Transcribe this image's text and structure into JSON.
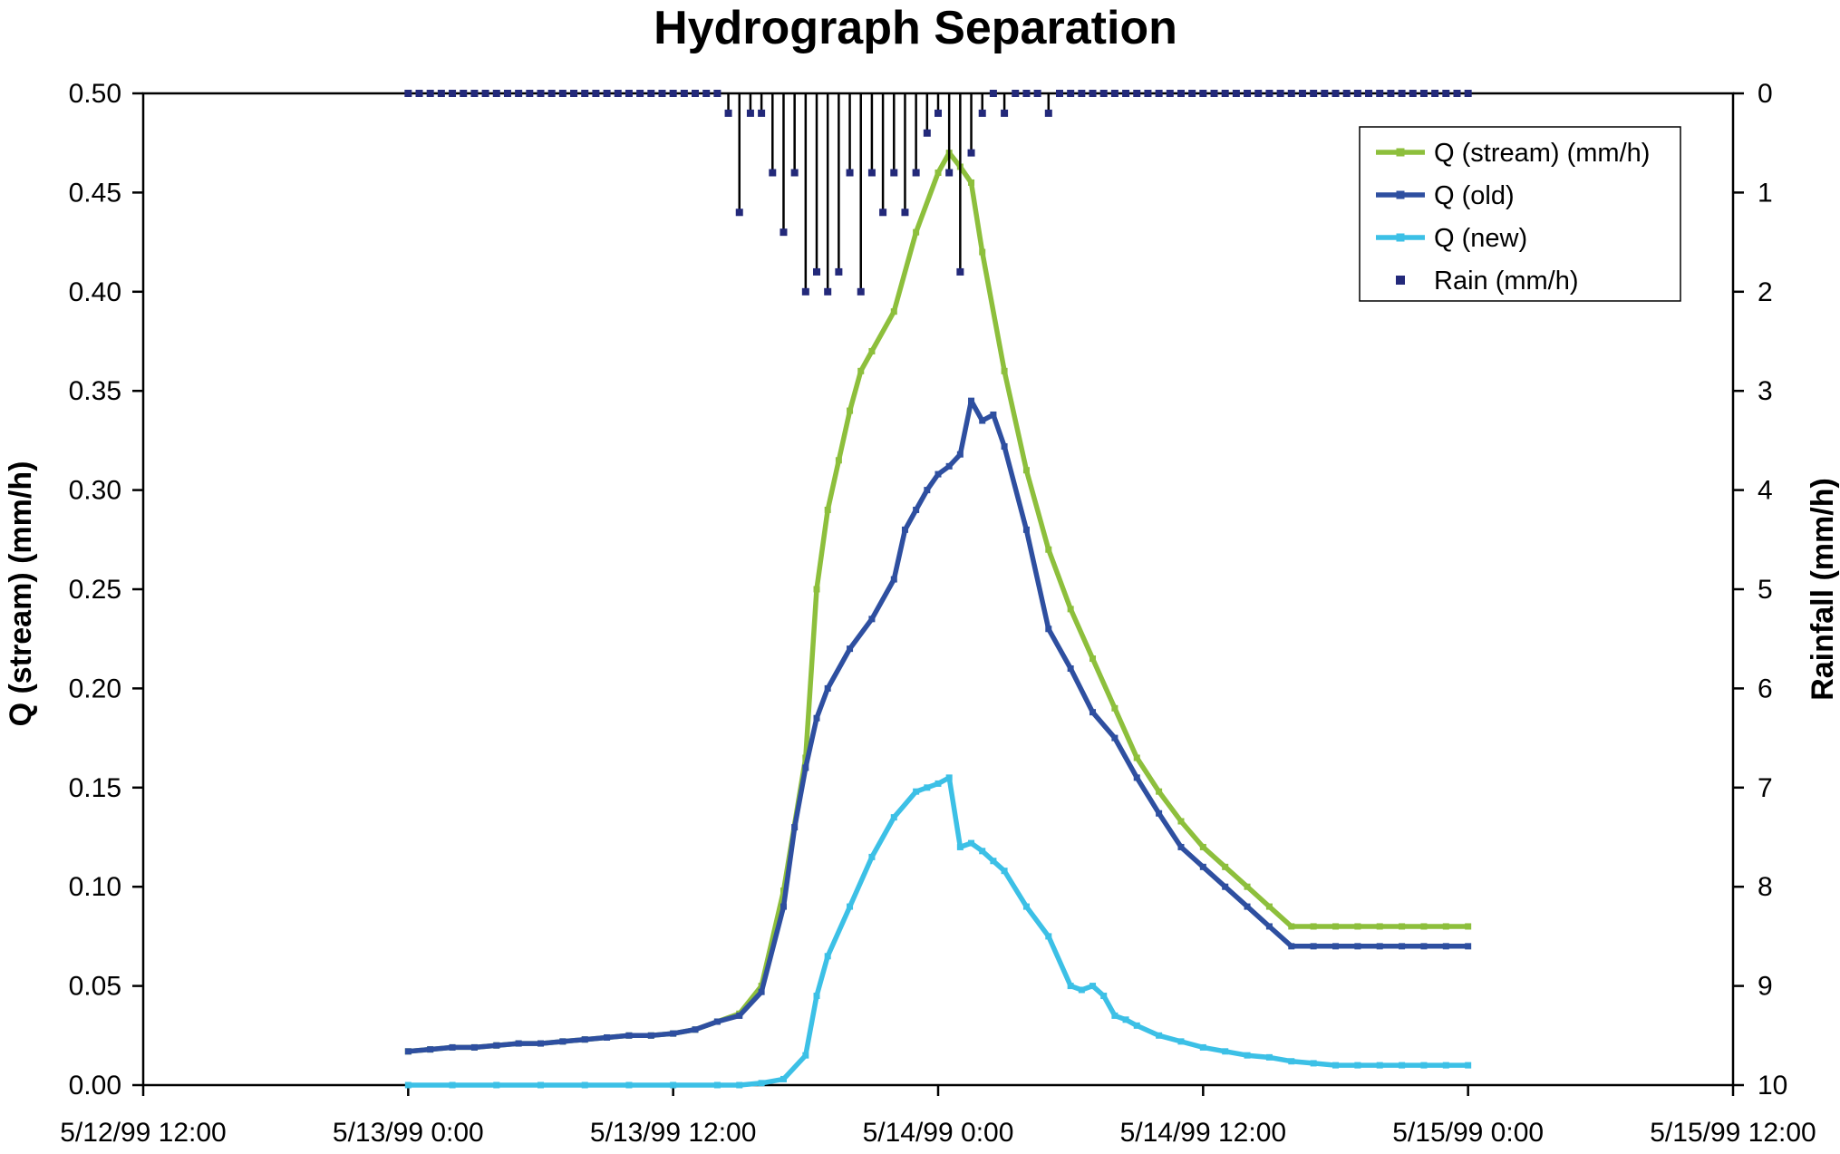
{
  "chart_data": {
    "type": "line",
    "title": "Hydrograph Separation",
    "xlabel": "",
    "ylabel": "Q (stream) (mm/h)",
    "y2label": "Rainfall (mm/h)",
    "x_tick_labels": [
      "5/12/99 12:00",
      "5/13/99 0:00",
      "5/13/99 12:00",
      "5/14/99 0:00",
      "5/14/99 12:00",
      "5/15/99 0:00",
      "5/15/99 12:00"
    ],
    "x_ticks_hours": [
      0,
      12,
      24,
      36,
      48,
      60,
      72
    ],
    "xlim": [
      0,
      72
    ],
    "y_tick_labels": [
      "0.00",
      "0.05",
      "0.10",
      "0.15",
      "0.20",
      "0.25",
      "0.30",
      "0.35",
      "0.40",
      "0.45",
      "0.50"
    ],
    "ylim": [
      0,
      0.5
    ],
    "y2_tick_labels": [
      "0",
      "1",
      "2",
      "3",
      "4",
      "5",
      "6",
      "7",
      "8",
      "9",
      "10"
    ],
    "y2lim": [
      0,
      10
    ],
    "y2_inverted": true,
    "grid": false,
    "legend": {
      "position": "top-right",
      "entries": [
        "Q (stream) (mm/h)",
        "Q (old)",
        "Q (new)",
        "Rain (mm/h)"
      ]
    },
    "series": [
      {
        "name": "Q (stream) (mm/h)",
        "color": "#8dbf3c",
        "axis": "left",
        "x": [
          12,
          13,
          14,
          15,
          16,
          17,
          18,
          19,
          20,
          21,
          22,
          23,
          24,
          25,
          26,
          27,
          28,
          29,
          30,
          30.5,
          31,
          31.5,
          32,
          32.5,
          33,
          34,
          35,
          36,
          36.5,
          37,
          37.5,
          38,
          39,
          40,
          41,
          42,
          43,
          44,
          45,
          46,
          47,
          48,
          49,
          50,
          51,
          52,
          53,
          54,
          55,
          56,
          57,
          58,
          59,
          60
        ],
        "values": [
          0.017,
          0.018,
          0.019,
          0.019,
          0.02,
          0.021,
          0.021,
          0.022,
          0.023,
          0.024,
          0.025,
          0.025,
          0.026,
          0.028,
          0.032,
          0.036,
          0.05,
          0.098,
          0.165,
          0.25,
          0.29,
          0.315,
          0.34,
          0.36,
          0.37,
          0.39,
          0.43,
          0.46,
          0.47,
          0.463,
          0.455,
          0.42,
          0.36,
          0.31,
          0.27,
          0.24,
          0.215,
          0.19,
          0.165,
          0.148,
          0.133,
          0.12,
          0.11,
          0.1,
          0.09,
          0.08,
          0.08,
          0.08,
          0.08,
          0.08,
          0.08,
          0.08,
          0.08,
          0.08
        ]
      },
      {
        "name": "Q (old)",
        "color": "#2e4fa0",
        "axis": "left",
        "x": [
          12,
          13,
          14,
          15,
          16,
          17,
          18,
          19,
          20,
          21,
          22,
          23,
          24,
          25,
          26,
          27,
          28,
          29,
          29.5,
          30,
          30.5,
          31,
          32,
          33,
          34,
          34.5,
          35,
          35.5,
          36,
          36.5,
          37,
          37.5,
          38,
          38.5,
          39,
          40,
          41,
          42,
          43,
          44,
          45,
          46,
          47,
          48,
          49,
          50,
          51,
          52,
          53,
          54,
          55,
          56,
          57,
          58,
          59,
          60
        ],
        "values": [
          0.017,
          0.018,
          0.019,
          0.019,
          0.02,
          0.021,
          0.021,
          0.022,
          0.023,
          0.024,
          0.025,
          0.025,
          0.026,
          0.028,
          0.032,
          0.035,
          0.047,
          0.09,
          0.13,
          0.16,
          0.185,
          0.2,
          0.22,
          0.235,
          0.255,
          0.28,
          0.29,
          0.3,
          0.308,
          0.312,
          0.318,
          0.345,
          0.335,
          0.338,
          0.322,
          0.28,
          0.23,
          0.21,
          0.188,
          0.175,
          0.155,
          0.137,
          0.12,
          0.11,
          0.1,
          0.09,
          0.08,
          0.07,
          0.07,
          0.07,
          0.07,
          0.07,
          0.07,
          0.07,
          0.07,
          0.07
        ]
      },
      {
        "name": "Q (new)",
        "color": "#3cc0e6",
        "axis": "left",
        "x": [
          12,
          14,
          16,
          18,
          20,
          22,
          24,
          26,
          27,
          28,
          29,
          30,
          30.5,
          31,
          32,
          33,
          34,
          35,
          35.5,
          36,
          36.5,
          37,
          37.5,
          38,
          38.5,
          39,
          40,
          41,
          42,
          42.5,
          43,
          43.5,
          44,
          44.5,
          45,
          46,
          47,
          48,
          49,
          50,
          51,
          52,
          53,
          54,
          55,
          56,
          57,
          58,
          59,
          60
        ],
        "values": [
          0.0,
          0.0,
          0.0,
          0.0,
          0.0,
          0.0,
          0.0,
          0.0,
          0.0,
          0.001,
          0.003,
          0.015,
          0.045,
          0.065,
          0.09,
          0.115,
          0.135,
          0.148,
          0.15,
          0.152,
          0.155,
          0.12,
          0.122,
          0.118,
          0.113,
          0.108,
          0.09,
          0.075,
          0.05,
          0.048,
          0.05,
          0.045,
          0.035,
          0.033,
          0.03,
          0.025,
          0.022,
          0.019,
          0.017,
          0.015,
          0.014,
          0.012,
          0.011,
          0.01,
          0.01,
          0.01,
          0.01,
          0.01,
          0.01,
          0.01
        ]
      },
      {
        "name": "Rain (mm/h)",
        "color": "#23297a",
        "axis": "right",
        "x": [
          12,
          26,
          26.5,
          27,
          27.5,
          28,
          28.5,
          29,
          29.5,
          30,
          30.5,
          31,
          31.5,
          32,
          32.5,
          33,
          33.5,
          34,
          34.5,
          35,
          35.5,
          36,
          36.5,
          37,
          37.5,
          38,
          38.5,
          39,
          39.5,
          40,
          40.5,
          41,
          41.5,
          42,
          42.5,
          43,
          43.5,
          44,
          60
        ],
        "values": [
          0,
          0,
          0.2,
          1.2,
          0.2,
          0.2,
          0.8,
          1.4,
          0.8,
          2,
          1.8,
          2,
          1.8,
          0.8,
          2,
          0.8,
          1.2,
          0.8,
          1.2,
          0.8,
          0.4,
          0.2,
          0.8,
          1.8,
          0.6,
          0.2,
          0,
          0.2,
          0,
          0,
          0,
          0.2,
          0,
          0,
          0,
          0,
          0,
          0,
          0
        ]
      }
    ]
  }
}
